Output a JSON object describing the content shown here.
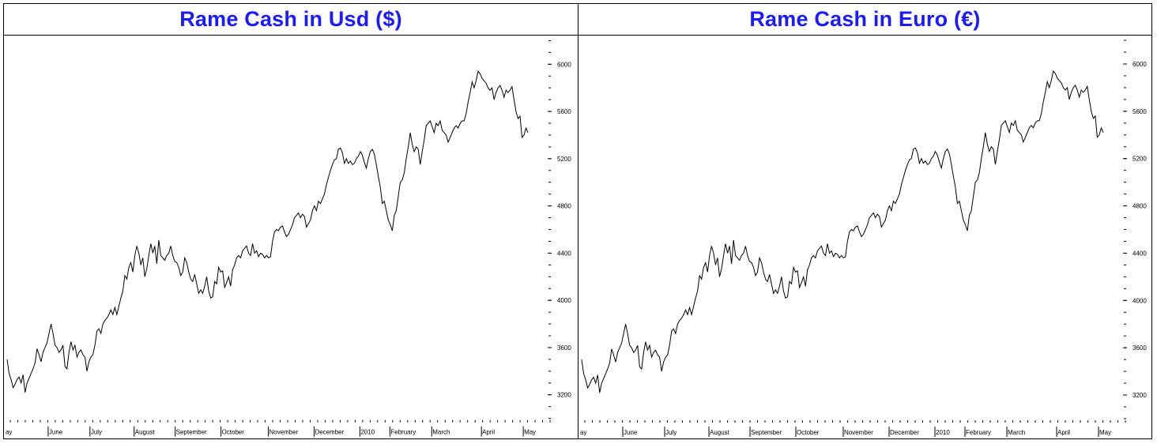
{
  "colors": {
    "title": "#1a1aff",
    "line": "#000000",
    "background": "#ffffff"
  },
  "chart_data": [
    {
      "type": "line",
      "title": "Rame Cash in Usd ($)",
      "ylim": [
        3000,
        6100
      ],
      "y_ticks": [
        3200,
        3600,
        4000,
        4400,
        4800,
        5200,
        5600,
        6000
      ],
      "x_tick_labels": [
        "ay",
        "June",
        "July",
        "August",
        "September",
        "October",
        "November",
        "December",
        "2010",
        "February",
        "March",
        "April",
        "May"
      ],
      "grid": false,
      "series": [
        {
          "values": [
            3500,
            3380,
            3330,
            3260,
            3290,
            3330,
            3350,
            3300,
            3370,
            3220,
            3300,
            3340,
            3380,
            3420,
            3470,
            3590,
            3540,
            3480,
            3560,
            3600,
            3640,
            3720,
            3800,
            3720,
            3620,
            3600,
            3560,
            3580,
            3620,
            3440,
            3420,
            3560,
            3650,
            3580,
            3620,
            3520,
            3560,
            3580,
            3540,
            3520,
            3400,
            3480,
            3520,
            3540,
            3620,
            3740,
            3760,
            3720,
            3800,
            3830,
            3850,
            3880,
            3920,
            3880,
            3940,
            3880,
            3950,
            4020,
            4080,
            4210,
            4180,
            4280,
            4320,
            4240,
            4380,
            4460,
            4400,
            4300,
            4360,
            4200,
            4270,
            4380,
            4480,
            4400,
            4460,
            4310,
            4510,
            4380,
            4360,
            4340,
            4380,
            4400,
            4460,
            4380,
            4330,
            4320,
            4280,
            4210,
            4240,
            4360,
            4320,
            4240,
            4180,
            4160,
            4220,
            4140,
            4060,
            4090,
            4060,
            4120,
            4200,
            4080,
            4020,
            4030,
            4160,
            4140,
            4280,
            4240,
            4250,
            4110,
            4150,
            4200,
            4120,
            4260,
            4300,
            4360,
            4380,
            4360,
            4420,
            4440,
            4460,
            4400,
            4380,
            4480,
            4400,
            4420,
            4370,
            4400,
            4390,
            4360,
            4380,
            4360,
            4370,
            4500,
            4580,
            4600,
            4590,
            4620,
            4630,
            4580,
            4540,
            4560,
            4600,
            4640,
            4700,
            4720,
            4740,
            4700,
            4730,
            4710,
            4620,
            4650,
            4680,
            4760,
            4800,
            4760,
            4840,
            4820,
            4860,
            4900,
            4980,
            5040,
            5100,
            5150,
            5190,
            5200,
            5280,
            5290,
            5250,
            5160,
            5200,
            5160,
            5180,
            5150,
            5160,
            5200,
            5220,
            5260,
            5230,
            5170,
            5120,
            5200,
            5260,
            5280,
            5240,
            5150,
            5050,
            4960,
            4820,
            4840,
            4760,
            4680,
            4640,
            4590,
            4720,
            4760,
            4880,
            5000,
            5020,
            5080,
            5200,
            5300,
            5420,
            5320,
            5260,
            5300,
            5280,
            5150,
            5260,
            5360,
            5480,
            5500,
            5520,
            5470,
            5420,
            5500,
            5480,
            5520,
            5440,
            5420,
            5400,
            5340,
            5380,
            5420,
            5460,
            5480,
            5460,
            5500,
            5520,
            5520,
            5580,
            5680,
            5760,
            5850,
            5800,
            5860,
            5940,
            5920,
            5880,
            5860,
            5840,
            5800,
            5780,
            5800,
            5700,
            5760,
            5800,
            5820,
            5780,
            5720,
            5780,
            5760,
            5780,
            5810,
            5700,
            5600,
            5540,
            5560,
            5380,
            5400,
            5460,
            5420
          ]
        }
      ]
    },
    {
      "type": "line",
      "title": "Rame Cash in Euro (€)",
      "ylim": [
        3000,
        6100
      ],
      "y_ticks": [
        3200,
        3600,
        4000,
        4400,
        4800,
        5200,
        5600,
        6000
      ],
      "x_tick_labels": [
        "ay",
        "June",
        "July",
        "August",
        "September",
        "October",
        "November",
        "December",
        "2010",
        "February",
        "March",
        "April",
        "May"
      ],
      "grid": false,
      "series": [
        {
          "values": [
            3500,
            3380,
            3330,
            3260,
            3290,
            3330,
            3350,
            3300,
            3370,
            3220,
            3300,
            3340,
            3380,
            3420,
            3470,
            3590,
            3540,
            3480,
            3560,
            3600,
            3640,
            3720,
            3800,
            3720,
            3620,
            3600,
            3560,
            3580,
            3620,
            3440,
            3420,
            3560,
            3650,
            3580,
            3620,
            3520,
            3560,
            3580,
            3540,
            3520,
            3400,
            3480,
            3520,
            3540,
            3620,
            3740,
            3760,
            3720,
            3800,
            3830,
            3850,
            3880,
            3920,
            3880,
            3940,
            3880,
            3950,
            4020,
            4080,
            4210,
            4180,
            4280,
            4320,
            4240,
            4380,
            4460,
            4400,
            4300,
            4360,
            4200,
            4270,
            4380,
            4480,
            4400,
            4460,
            4310,
            4510,
            4380,
            4360,
            4340,
            4380,
            4400,
            4460,
            4380,
            4330,
            4320,
            4280,
            4210,
            4240,
            4360,
            4320,
            4240,
            4180,
            4160,
            4220,
            4140,
            4060,
            4090,
            4060,
            4120,
            4200,
            4080,
            4020,
            4030,
            4160,
            4140,
            4280,
            4240,
            4250,
            4110,
            4150,
            4200,
            4120,
            4260,
            4300,
            4360,
            4380,
            4360,
            4420,
            4440,
            4460,
            4400,
            4380,
            4480,
            4400,
            4420,
            4370,
            4400,
            4390,
            4360,
            4380,
            4360,
            4370,
            4500,
            4580,
            4600,
            4590,
            4620,
            4630,
            4580,
            4540,
            4560,
            4600,
            4640,
            4700,
            4720,
            4740,
            4700,
            4730,
            4710,
            4620,
            4650,
            4680,
            4760,
            4800,
            4760,
            4840,
            4820,
            4860,
            4900,
            4980,
            5040,
            5100,
            5150,
            5190,
            5200,
            5280,
            5290,
            5250,
            5160,
            5200,
            5160,
            5180,
            5150,
            5160,
            5200,
            5220,
            5260,
            5230,
            5170,
            5120,
            5200,
            5260,
            5280,
            5240,
            5150,
            5050,
            4960,
            4820,
            4840,
            4760,
            4680,
            4640,
            4590,
            4720,
            4760,
            4880,
            5000,
            5020,
            5080,
            5200,
            5300,
            5420,
            5320,
            5260,
            5300,
            5280,
            5150,
            5260,
            5360,
            5480,
            5500,
            5520,
            5470,
            5420,
            5500,
            5480,
            5520,
            5440,
            5420,
            5400,
            5340,
            5380,
            5420,
            5460,
            5480,
            5460,
            5500,
            5520,
            5520,
            5580,
            5680,
            5760,
            5850,
            5800,
            5860,
            5940,
            5920,
            5880,
            5860,
            5840,
            5800,
            5780,
            5800,
            5700,
            5760,
            5800,
            5820,
            5780,
            5720,
            5780,
            5760,
            5780,
            5810,
            5700,
            5600,
            5540,
            5560,
            5380,
            5400,
            5460,
            5420
          ]
        }
      ]
    }
  ]
}
